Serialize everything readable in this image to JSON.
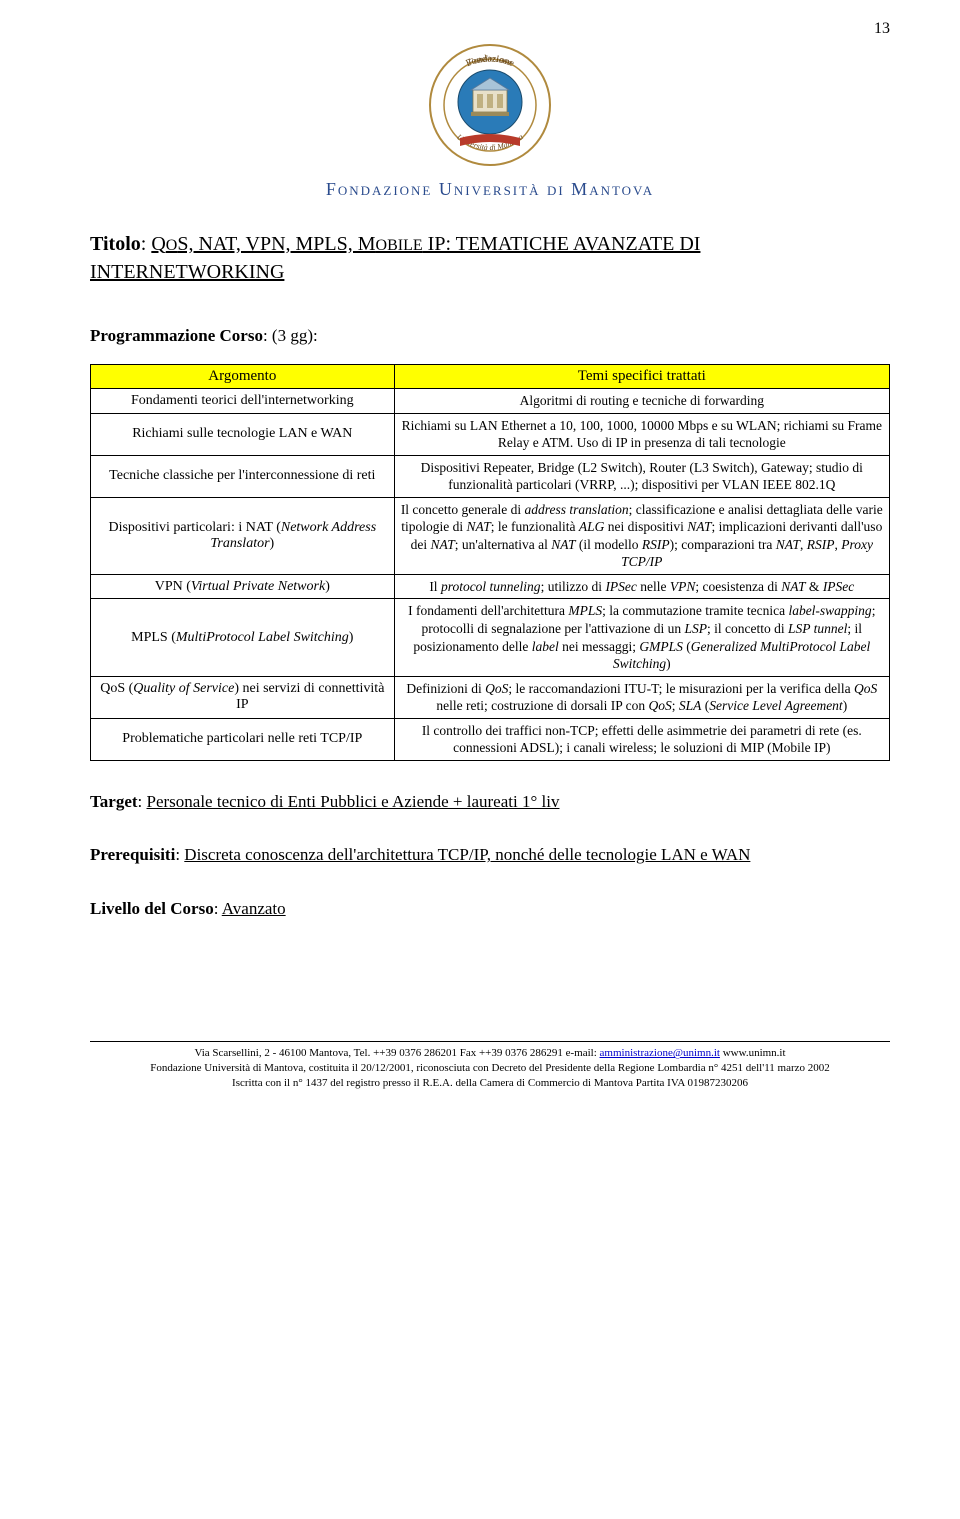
{
  "page_number": "13",
  "logo": {
    "top_text": "Fondazione",
    "bottom_text": "Università di Mantova",
    "border_color": "#b08a3e",
    "text_color": "#6b4a1a",
    "center_bg": "#2a7bb8",
    "center_outline": "#1a4b6d"
  },
  "foundation_name": "Fondazione Università di Mantova",
  "foundation_name_color": "#2a4b8d",
  "title": {
    "label": "Titolo",
    "text_smallcaps_1": "QoS, NAT, VPN, MPLS, Mobile IP:",
    "text_part2": " TEMATICHE AVANZATE DI INTERNETWORKING"
  },
  "programmazione": {
    "label": "Programmazione Corso",
    "value": ": (3 gg):"
  },
  "table": {
    "header_bg": "#ffff00",
    "headers": [
      "Argomento",
      "Temi specifici trattati"
    ],
    "rows": [
      {
        "left": "Fondamenti teorici dell'internetworking",
        "right": "Algoritmi di routing e tecniche di forwarding"
      },
      {
        "left": "Richiami sulle tecnologie LAN e WAN",
        "right": "Richiami su LAN Ethernet a 10, 100, 1000, 10000 Mbps e su WLAN; richiami su Frame Relay e ATM. Uso di IP in presenza di tali tecnologie"
      },
      {
        "left": "Tecniche classiche per l'interconnessione di reti",
        "right": "Dispositivi Repeater, Bridge (L2 Switch), Router (L3 Switch), Gateway; studio di funzionalità particolari (VRRP, ...); dispositivi per VLAN IEEE 802.1Q"
      },
      {
        "left_plain": "Dispositivi particolari: i NAT (",
        "left_italic": "Network Address Translator",
        "left_tail": ")",
        "right_html": "Il concetto generale di <i>address translation</i>; classificazione e analisi dettagliata delle varie tipologie di <i>NAT</i>; le funzionalità <i>ALG</i> nei dispositivi <i>NAT</i>; implicazioni derivanti dall'uso dei <i>NAT</i>; un'alternativa al <i>NAT</i> (il modello <i>RSIP</i>); comparazioni tra <i>NAT</i>, <i>RSIP</i>, <i>Proxy TCP/IP</i>"
      },
      {
        "left_plain": "VPN (",
        "left_italic": "Virtual Private Network",
        "left_tail": ")",
        "right_html": "Il <i>protocol tunneling</i>; utilizzo di <i>IPSec</i> nelle <i>VPN</i>; coesistenza di <i>NAT</i> &amp; <i>IPSec</i>"
      },
      {
        "left_plain": "MPLS (",
        "left_italic": "MultiProtocol Label Switching",
        "left_tail": ")",
        "right_html": "I fondamenti dell'architettura <i>MPLS</i>; la commutazione tramite tecnica <i>label-swapping</i>; protocolli di segnalazione per l'attivazione di un <i>LSP</i>; il concetto di <i>LSP tunnel</i>; il posizionamento delle <i>label</i> nei messaggi; <i>GMPLS</i> (<i>Generalized MultiProtocol Label Switching</i>)"
      },
      {
        "left_plain": "QoS (",
        "left_italic": "Quality of Service",
        "left_tail": ") nei servizi di connettività IP",
        "right_html": "Definizioni di <i>QoS</i>; le raccomandazioni ITU-T; le misurazioni per la verifica della <i>QoS</i> nelle reti; costruzione di dorsali IP con <i>QoS</i>; <i>SLA</i> (<i>Service Level Agreement</i>)"
      },
      {
        "left": "Problematiche particolari nelle reti TCP/IP",
        "right": "Il controllo dei traffici non-TCP; effetti delle asimmetrie dei parametri di rete (es. connessioni ADSL); i canali wireless; le soluzioni di MIP (Mobile IP)"
      }
    ]
  },
  "target_line": {
    "label": "Target",
    "value": "Personale tecnico di Enti Pubblici e Aziende + laureati 1° liv"
  },
  "prereq_line": {
    "label": "Prerequisiti",
    "value": "Discreta conoscenza dell'architettura TCP/IP, nonché delle tecnologie LAN e WAN"
  },
  "level_line": {
    "label": "Livello del Corso",
    "value": "Avanzato"
  },
  "footer": {
    "line1_pre": "Via Scarsellini, 2 - 46100 Mantova, Tel. ++39 0376 286201  Fax ++39 0376 286291 e-mail: ",
    "email": "amministrazione@unimn.it",
    "line1_post": "  www.unimn.it",
    "line2": "Fondazione Università di Mantova, costituita il 20/12/2001, riconosciuta con Decreto del Presidente della Regione Lombardia n° 4251 dell'11 marzo 2002",
    "line3": "Iscritta con il n° 1437 del registro presso il R.E.A. della Camera di Commercio di Mantova Partita IVA 01987230206"
  }
}
